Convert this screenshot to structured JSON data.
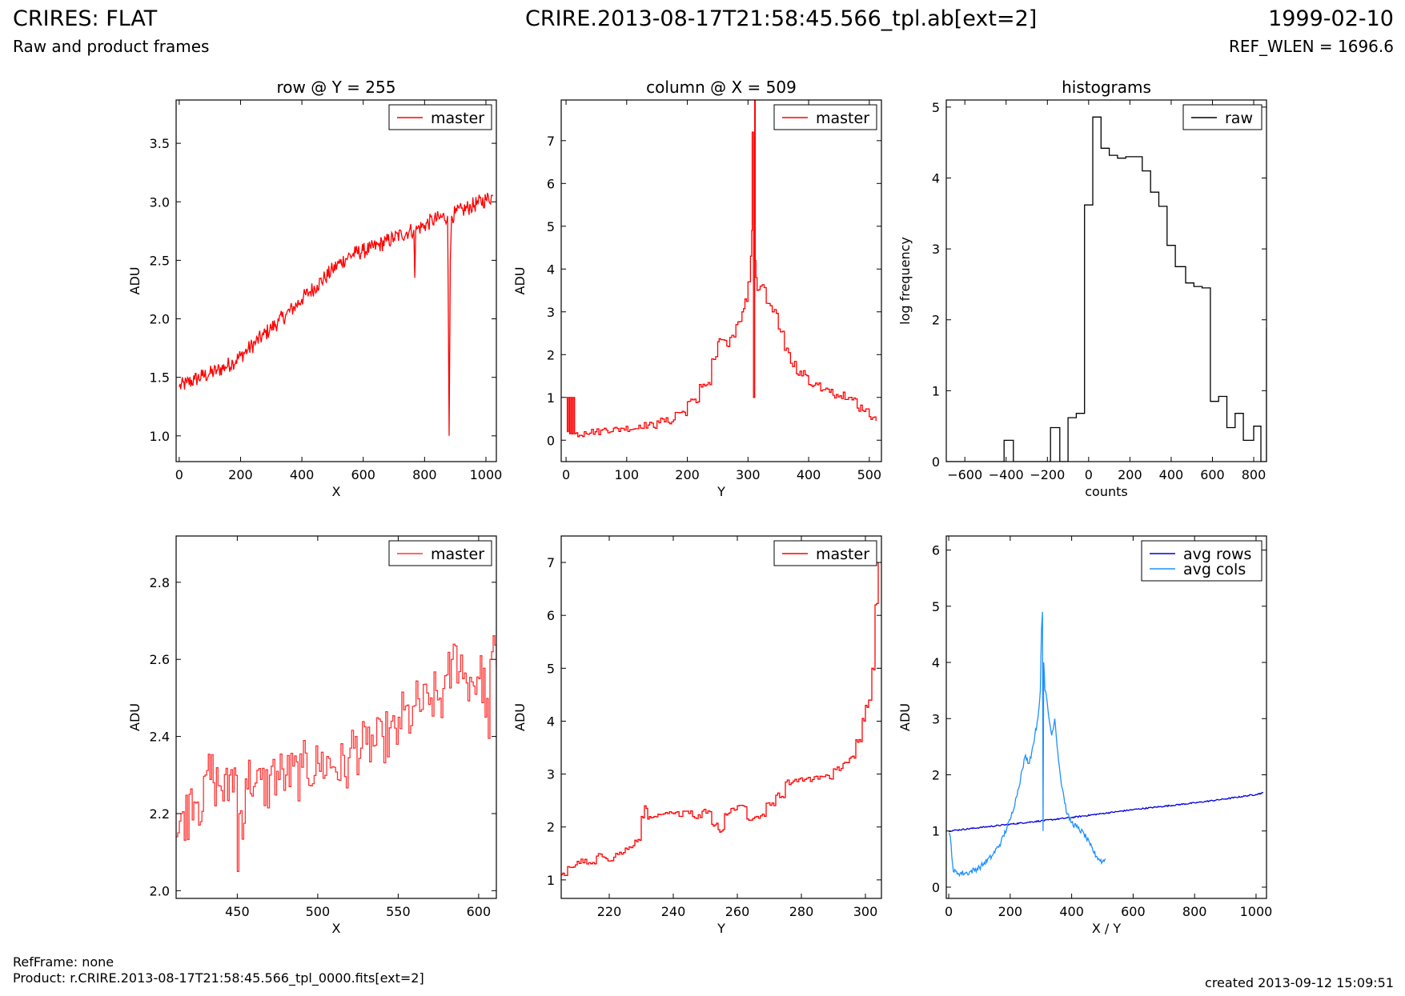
{
  "header": {
    "title_left": "CRIRES: FLAT",
    "subtitle_left": "Raw and product frames",
    "title_center": "CRIRE.2013-08-17T21:58:45.566_tpl.ab[ext=2]",
    "title_right": "1999-02-10",
    "subtitle_right": "REF_WLEN = 1696.6"
  },
  "footer": {
    "ref_frame": "RefFrame: none",
    "product": "Product: r.CRIRE.2013-08-17T21:58:45.566_tpl_0000.fits[ext=2]",
    "created": "created 2013-09-12 15:09:51"
  },
  "chart_data": [
    {
      "type": "line",
      "title": "row @ Y = 255",
      "xlabel": "X",
      "ylabel": "ADU",
      "xlim": [
        -10,
        1034
      ],
      "ylim": [
        0.78,
        3.87
      ],
      "xticks": [
        0,
        200,
        400,
        600,
        800,
        1000
      ],
      "yticks": [
        1.0,
        1.5,
        2.0,
        2.5,
        3.0,
        3.5
      ],
      "tick_decimals": 1,
      "legend": "top-right",
      "series": [
        {
          "name": "master",
          "color": "#ff0000",
          "step": false,
          "x": [
            0,
            25,
            50,
            75,
            100,
            125,
            150,
            175,
            200,
            225,
            250,
            275,
            300,
            325,
            350,
            375,
            400,
            425,
            450,
            475,
            500,
            525,
            550,
            575,
            600,
            625,
            650,
            675,
            700,
            725,
            750,
            765,
            768,
            771,
            775,
            800,
            825,
            850,
            875,
            877,
            880,
            884,
            888,
            900,
            925,
            950,
            975,
            1000,
            1023
          ],
          "y": [
            1.42,
            1.45,
            1.48,
            1.51,
            1.53,
            1.56,
            1.59,
            1.63,
            1.68,
            1.74,
            1.8,
            1.86,
            1.92,
            1.98,
            2.04,
            2.1,
            2.17,
            2.23,
            2.29,
            2.35,
            2.42,
            2.48,
            2.53,
            2.56,
            2.58,
            2.6,
            2.63,
            2.66,
            2.69,
            2.72,
            2.75,
            2.76,
            2.35,
            2.74,
            2.77,
            2.8,
            2.84,
            2.86,
            2.88,
            2.3,
            1.0,
            2.5,
            2.88,
            2.9,
            2.93,
            2.96,
            2.99,
            3.02,
            3.05
          ],
          "noise_amplitude": 0.07
        }
      ]
    },
    {
      "type": "line",
      "title": "column @ X = 509",
      "xlabel": "Y",
      "ylabel": "ADU",
      "xlim": [
        -8,
        520
      ],
      "ylim": [
        -0.5,
        7.95
      ],
      "xticks": [
        0,
        100,
        200,
        300,
        400,
        500
      ],
      "yticks": [
        0,
        1,
        2,
        3,
        4,
        5,
        6,
        7
      ],
      "tick_decimals": 0,
      "legend": "top-right",
      "series": [
        {
          "name": "master",
          "color": "#ff0000",
          "step": true,
          "x": [
            0,
            2,
            4,
            6,
            8,
            10,
            12,
            14,
            30,
            60,
            90,
            120,
            150,
            180,
            200,
            220,
            240,
            250,
            255,
            265,
            270,
            280,
            290,
            295,
            300,
            304,
            306,
            307,
            309,
            310,
            311,
            312,
            313,
            315,
            320,
            330,
            340,
            350,
            360,
            370,
            380,
            400,
            420,
            440,
            460,
            480,
            500,
            511
          ],
          "y": [
            1.0,
            0.2,
            1.0,
            0.15,
            1.0,
            0.15,
            1.0,
            0.15,
            0.2,
            0.25,
            0.28,
            0.35,
            0.45,
            0.65,
            0.9,
            1.3,
            1.9,
            2.3,
            2.35,
            2.2,
            2.4,
            2.7,
            3.0,
            3.3,
            3.7,
            4.3,
            4.9,
            7.2,
            1.0,
            1.0,
            8.0,
            4.2,
            3.8,
            3.5,
            3.6,
            3.2,
            3.0,
            2.6,
            2.1,
            1.8,
            1.55,
            1.3,
            1.15,
            1.05,
            0.95,
            0.75,
            0.55,
            0.45
          ],
          "noise_amplitude": 0.08
        }
      ]
    },
    {
      "type": "line",
      "title": "histograms",
      "xlabel": "counts",
      "ylabel": "log frequency",
      "xlim": [
        -690,
        862
      ],
      "ylim": [
        0,
        5.1
      ],
      "xticks": [
        -600,
        -400,
        -200,
        0,
        200,
        400,
        600,
        800
      ],
      "yticks": [
        0,
        1,
        2,
        3,
        4,
        5
      ],
      "tick_decimals": 0,
      "legend": "top-right",
      "series": [
        {
          "name": "raw",
          "color": "#000000",
          "step": true,
          "x": [
            -690,
            -410,
            -365,
            -230,
            -185,
            -140,
            -100,
            -60,
            -20,
            20,
            60,
            100,
            140,
            180,
            220,
            260,
            300,
            340,
            380,
            420,
            470,
            510,
            550,
            590,
            630,
            670,
            710,
            750,
            800,
            835,
            862
          ],
          "y": [
            0,
            0.3,
            0,
            0,
            0.48,
            0,
            0.62,
            0.68,
            3.62,
            4.86,
            4.42,
            4.32,
            4.28,
            4.3,
            4.3,
            4.1,
            3.8,
            3.6,
            3.05,
            2.75,
            2.52,
            2.47,
            2.45,
            0.85,
            0.92,
            0.48,
            0.68,
            0.3,
            0.5,
            0,
            1.88
          ]
        }
      ]
    },
    {
      "type": "line",
      "xlabel": "X",
      "ylabel": "ADU",
      "xlim": [
        412,
        611
      ],
      "ylim": [
        1.98,
        2.92
      ],
      "xticks": [
        450,
        500,
        550,
        600
      ],
      "yticks": [
        2.0,
        2.2,
        2.4,
        2.6,
        2.8
      ],
      "tick_decimals": 1,
      "legend": "top-right",
      "series": [
        {
          "name": "master",
          "color": "#ff3333",
          "step": true,
          "x": [
            412,
            415,
            420,
            425,
            430,
            435,
            440,
            445,
            450,
            451,
            455,
            460,
            470,
            480,
            490,
            500,
            510,
            520,
            530,
            540,
            550,
            560,
            570,
            580,
            583,
            590,
            600,
            604,
            607,
            611
          ],
          "y": [
            2.14,
            2.2,
            2.25,
            2.23,
            2.3,
            2.28,
            2.26,
            2.3,
            2.05,
            2.2,
            2.29,
            2.27,
            2.3,
            2.3,
            2.32,
            2.33,
            2.32,
            2.37,
            2.38,
            2.4,
            2.45,
            2.48,
            2.5,
            2.56,
            2.6,
            2.55,
            2.55,
            2.45,
            2.6,
            2.58
          ],
          "noise_amplitude": 0.07
        }
      ]
    },
    {
      "type": "line",
      "xlabel": "Y",
      "ylabel": "ADU",
      "xlim": [
        205,
        305
      ],
      "ylim": [
        0.65,
        7.5
      ],
      "xticks": [
        220,
        240,
        260,
        280,
        300
      ],
      "yticks": [
        1,
        2,
        3,
        4,
        5,
        6,
        7
      ],
      "tick_decimals": 0,
      "legend": "top-right",
      "series": [
        {
          "name": "master",
          "color": "#ff0000",
          "step": true,
          "x": [
            205,
            207,
            210,
            213,
            216,
            219,
            222,
            225,
            228,
            230,
            231,
            232,
            234,
            237,
            240,
            243,
            246,
            249,
            252,
            254,
            256,
            258,
            260,
            263,
            266,
            269,
            272,
            275,
            278,
            281,
            284,
            287,
            290,
            293,
            295,
            297,
            299,
            300,
            301,
            302,
            303,
            304
          ],
          "y": [
            1.1,
            1.25,
            1.35,
            1.3,
            1.45,
            1.4,
            1.5,
            1.6,
            1.75,
            2.2,
            2.4,
            2.15,
            2.2,
            2.25,
            2.25,
            2.3,
            2.2,
            2.3,
            2.05,
            1.95,
            2.25,
            2.35,
            2.4,
            2.15,
            2.2,
            2.45,
            2.6,
            2.85,
            2.9,
            2.9,
            2.95,
            2.95,
            3.1,
            3.2,
            3.3,
            3.65,
            4.05,
            4.3,
            4.4,
            5.0,
            6.2,
            7.0
          ],
          "noise_amplitude": 0.05
        }
      ]
    },
    {
      "type": "line",
      "xlabel": "X / Y",
      "ylabel": "ADU",
      "xlim": [
        -8,
        1034
      ],
      "ylim": [
        -0.2,
        6.25
      ],
      "xticks": [
        0,
        200,
        400,
        600,
        800,
        1000
      ],
      "yticks": [
        0,
        1,
        2,
        3,
        4,
        5,
        6
      ],
      "tick_decimals": 0,
      "legend": "top-right",
      "series": [
        {
          "name": "avg rows",
          "color": "#0000dd",
          "step": false,
          "x": [
            0,
            100,
            200,
            300,
            400,
            500,
            600,
            700,
            800,
            900,
            1000,
            1023
          ],
          "y": [
            1.0,
            1.06,
            1.12,
            1.18,
            1.24,
            1.31,
            1.38,
            1.44,
            1.5,
            1.57,
            1.65,
            1.68
          ],
          "noise_amplitude": 0.012
        },
        {
          "name": "avg cols",
          "color": "#1e90ff",
          "step": false,
          "x": [
            0,
            5,
            15,
            30,
            60,
            100,
            140,
            170,
            200,
            220,
            240,
            250,
            260,
            270,
            280,
            290,
            298,
            302,
            305,
            307,
            309,
            311,
            313,
            318,
            325,
            335,
            345,
            355,
            365,
            375,
            385,
            400,
            420,
            440,
            460,
            480,
            500,
            511
          ],
          "y": [
            0.95,
            0.9,
            0.28,
            0.25,
            0.25,
            0.35,
            0.55,
            0.8,
            1.2,
            1.6,
            2.1,
            2.35,
            2.2,
            2.4,
            2.7,
            3.0,
            3.5,
            4.6,
            4.9,
            1.0,
            4.0,
            3.8,
            3.5,
            3.4,
            3.05,
            2.7,
            3.0,
            2.4,
            1.9,
            1.6,
            1.3,
            1.15,
            1.05,
            0.95,
            0.75,
            0.55,
            0.45,
            0.5
          ],
          "noise_amplitude": 0.05
        }
      ]
    }
  ]
}
